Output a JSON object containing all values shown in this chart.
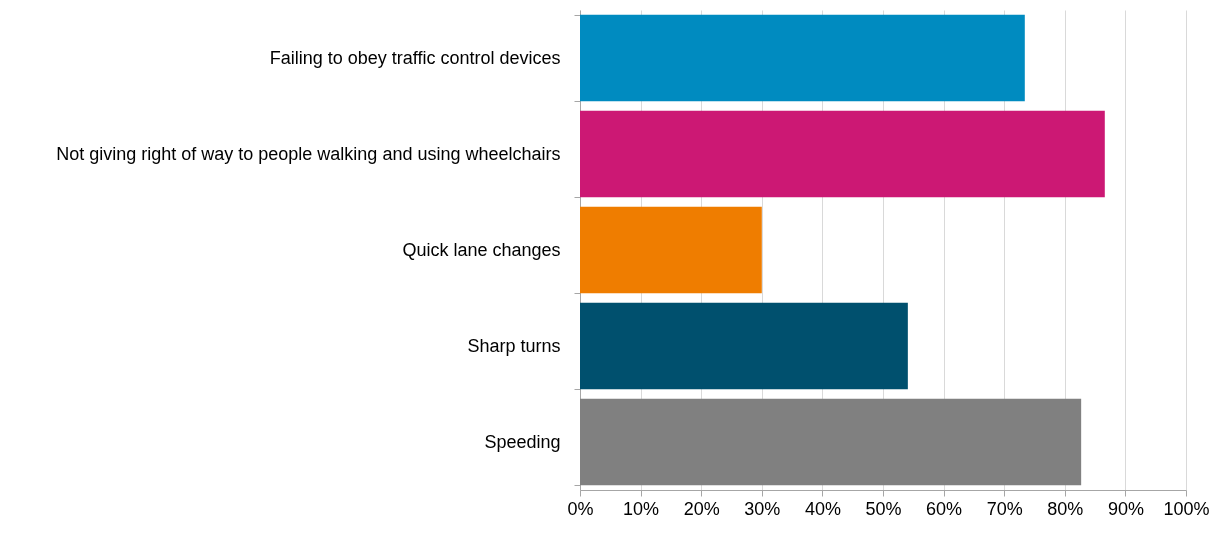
{
  "chart_data": {
    "type": "bar",
    "orientation": "horizontal",
    "categories": [
      "Failing to obey traffic control devices",
      "Not giving right of way to people walking and using wheelchairs",
      "Quick lane changes",
      "Sharp turns",
      "Speeding"
    ],
    "values": [
      73.4,
      86.6,
      30.0,
      54.1,
      82.7
    ],
    "colors": [
      "#008bc0",
      "#cc1874",
      "#ef7d00",
      "#00506e",
      "#808080"
    ],
    "xlim": [
      0,
      100
    ],
    "xticks": [
      {
        "value": 0,
        "label": "0%"
      },
      {
        "value": 10,
        "label": "10%"
      },
      {
        "value": 20,
        "label": "20%"
      },
      {
        "value": 30,
        "label": "30%"
      },
      {
        "value": 40,
        "label": "40%"
      },
      {
        "value": 50,
        "label": "50%"
      },
      {
        "value": 60,
        "label": "60%"
      },
      {
        "value": 70,
        "label": "70%"
      },
      {
        "value": 80,
        "label": "80%"
      },
      {
        "value": 90,
        "label": "90%"
      },
      {
        "value": 100,
        "label": "100%"
      }
    ],
    "grid": "x",
    "legend": false
  }
}
